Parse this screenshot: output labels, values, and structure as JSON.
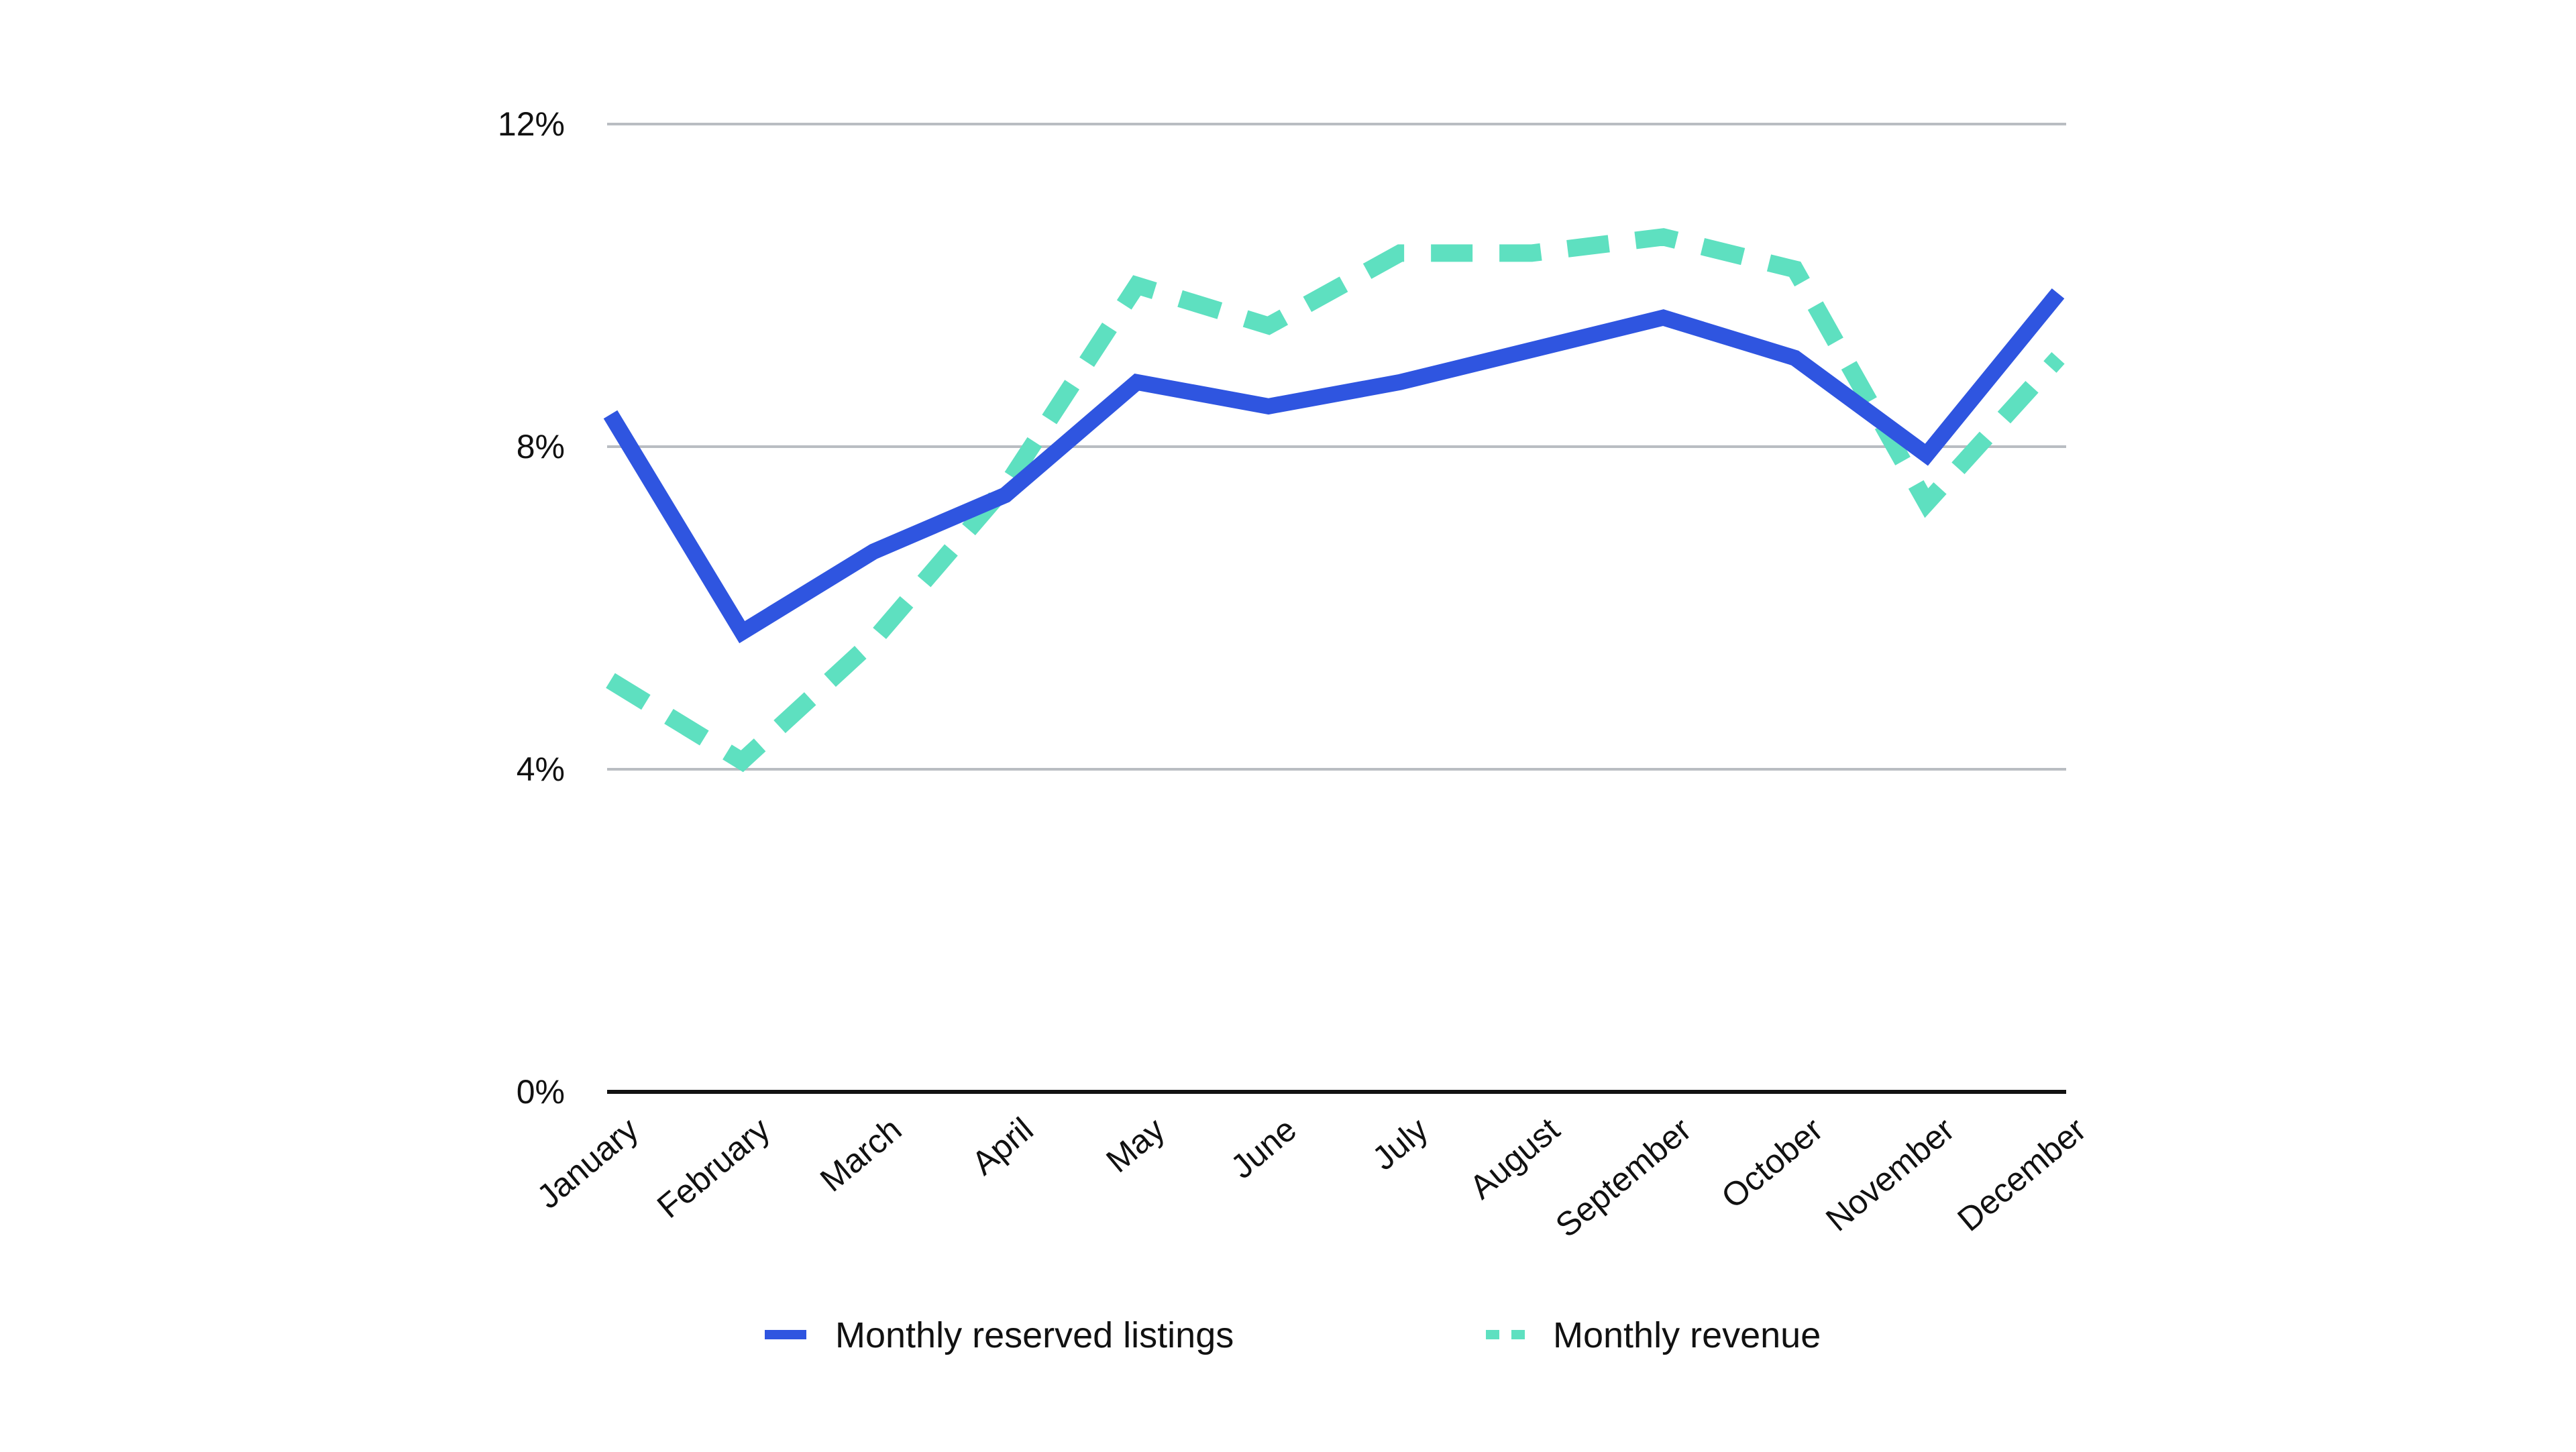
{
  "chart_data": {
    "type": "line",
    "title": "",
    "xlabel": "",
    "ylabel": "",
    "categories": [
      "January",
      "February",
      "March",
      "April",
      "May",
      "June",
      "July",
      "August",
      "September",
      "October",
      "November",
      "December"
    ],
    "y_ticks": [
      0,
      4,
      8,
      12
    ],
    "y_tick_labels": [
      "0%",
      "4%",
      "8%",
      "12%"
    ],
    "ylim": [
      0,
      12
    ],
    "grid": true,
    "legend_position": "bottom",
    "series": [
      {
        "name": "Monthly reserved listings",
        "style": "solid",
        "color": "#2f55e0",
        "values": [
          8.4,
          5.7,
          6.7,
          7.4,
          8.8,
          8.5,
          8.8,
          9.2,
          9.6,
          9.1,
          7.9,
          9.9
        ]
      },
      {
        "name": "Monthly revenue",
        "style": "dashed",
        "color": "#5ee0c0",
        "values": [
          5.1,
          4.1,
          5.6,
          7.5,
          10.0,
          9.5,
          10.4,
          10.4,
          10.6,
          10.2,
          7.3,
          9.1
        ]
      }
    ]
  }
}
